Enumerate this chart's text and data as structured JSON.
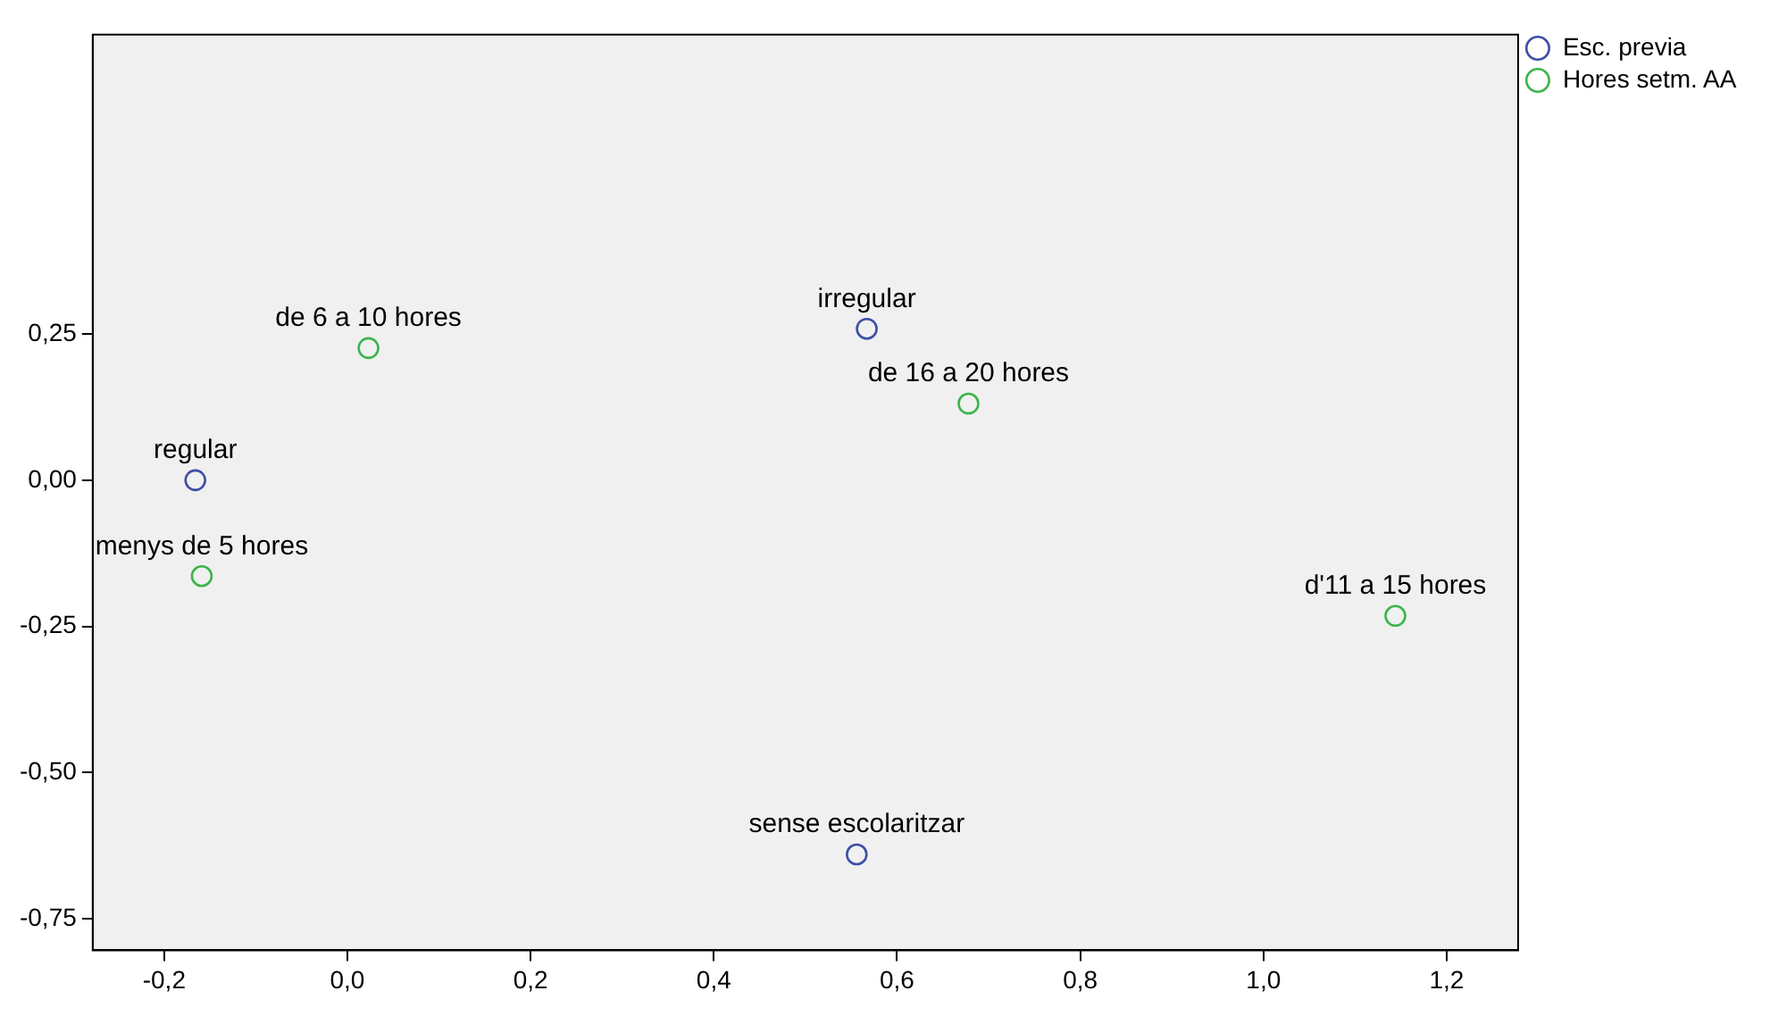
{
  "chart_data": {
    "type": "scatter",
    "marker": "circle",
    "grid": false,
    "legend": "top right",
    "xlim": [
      -0.278,
      1.278
    ],
    "ylim": [
      -0.804,
      0.762
    ],
    "xticks": [
      {
        "value": -0.2,
        "label": "-0,2"
      },
      {
        "value": 0,
        "label": "0,0"
      },
      {
        "value": 0.2,
        "label": "0,2"
      },
      {
        "value": 0.4,
        "label": "0,4"
      },
      {
        "value": 0.6,
        "label": "0,6"
      },
      {
        "value": 0.8,
        "label": "0,8"
      },
      {
        "value": 1,
        "label": "1,0"
      },
      {
        "value": 1.2,
        "label": "1,2"
      }
    ],
    "yticks": [
      {
        "value": -0.75,
        "label": "-0,75"
      },
      {
        "value": -0.5,
        "label": "-0,50"
      },
      {
        "value": -0.25,
        "label": "-0,25"
      },
      {
        "value": 0,
        "label": "0,00"
      },
      {
        "value": 0.25,
        "label": "0,25"
      }
    ],
    "series": [
      {
        "name": "Esc. previa",
        "color": "#3c4fa6",
        "x": [
          -0.166,
          0.567,
          0.556
        ],
        "values": [
          0,
          0.259,
          -0.64
        ]
      },
      {
        "name": "Hores setm. AA",
        "color": "#3cb44b",
        "x": [
          0.023,
          0.678,
          -0.159,
          1.144
        ],
        "values": [
          0.226,
          0.131,
          -0.164,
          -0.232
        ]
      }
    ],
    "annotations": [
      {
        "text": "regular",
        "x": -0.166,
        "y": 0
      },
      {
        "text": "irregular",
        "x": 0.567,
        "y": 0.259
      },
      {
        "text": "sense escolaritzar",
        "x": 0.556,
        "y": -0.64
      },
      {
        "text": "de 6 a 10 hores",
        "x": 0.023,
        "y": 0.226
      },
      {
        "text": "de 16 a 20 hores",
        "x": 0.678,
        "y": 0.131
      },
      {
        "text": "menys de 5 hores",
        "x": -0.159,
        "y": -0.164
      },
      {
        "text": "d'11 a 15 hores",
        "x": 1.144,
        "y": -0.232
      }
    ]
  }
}
